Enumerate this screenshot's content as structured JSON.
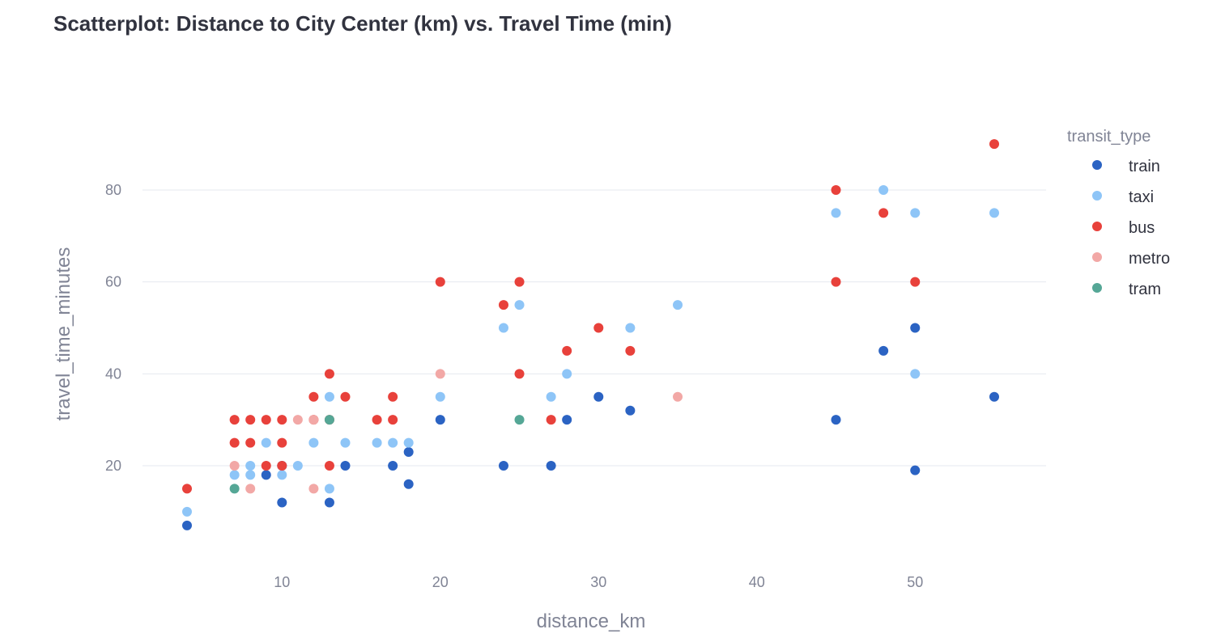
{
  "chart_data": {
    "type": "scatter",
    "title": "Scatterplot: Distance to City Center (km) vs. Travel Time (min)",
    "xlabel": "distance_km",
    "ylabel": "travel_time_minutes",
    "xlim": [
      1,
      58
    ],
    "ylim": [
      -3,
      97
    ],
    "xticks": [
      10,
      20,
      30,
      40,
      50
    ],
    "yticks": [
      20,
      40,
      60,
      80
    ],
    "grid": "horizontal",
    "legend": {
      "title": "transit_type",
      "position": "right"
    },
    "series": [
      {
        "name": "train",
        "color": "#2b63c3",
        "points": [
          [
            4,
            7
          ],
          [
            9,
            18
          ],
          [
            10,
            12
          ],
          [
            10,
            20
          ],
          [
            13,
            12
          ],
          [
            14,
            20
          ],
          [
            17,
            20
          ],
          [
            18,
            16
          ],
          [
            18,
            23
          ],
          [
            20,
            30
          ],
          [
            24,
            20
          ],
          [
            27,
            20
          ],
          [
            28,
            30
          ],
          [
            30,
            35
          ],
          [
            32,
            32
          ],
          [
            45,
            30
          ],
          [
            48,
            45
          ],
          [
            50,
            50
          ],
          [
            50,
            19
          ],
          [
            55,
            35
          ]
        ]
      },
      {
        "name": "taxi",
        "color": "#8ec5f7",
        "points": [
          [
            4,
            10
          ],
          [
            7,
            18
          ],
          [
            8,
            18
          ],
          [
            8,
            20
          ],
          [
            9,
            25
          ],
          [
            10,
            18
          ],
          [
            11,
            20
          ],
          [
            12,
            25
          ],
          [
            13,
            35
          ],
          [
            13,
            15
          ],
          [
            14,
            25
          ],
          [
            16,
            25
          ],
          [
            17,
            25
          ],
          [
            18,
            25
          ],
          [
            20,
            35
          ],
          [
            24,
            50
          ],
          [
            25,
            55
          ],
          [
            27,
            35
          ],
          [
            28,
            40
          ],
          [
            32,
            50
          ],
          [
            35,
            55
          ],
          [
            45,
            75
          ],
          [
            48,
            80
          ],
          [
            50,
            75
          ],
          [
            50,
            40
          ],
          [
            55,
            75
          ]
        ]
      },
      {
        "name": "bus",
        "color": "#e8413b",
        "points": [
          [
            4,
            15
          ],
          [
            7,
            30
          ],
          [
            7,
            25
          ],
          [
            8,
            30
          ],
          [
            8,
            25
          ],
          [
            9,
            30
          ],
          [
            9,
            20
          ],
          [
            10,
            30
          ],
          [
            10,
            25
          ],
          [
            10,
            20
          ],
          [
            12,
            35
          ],
          [
            12,
            30
          ],
          [
            13,
            40
          ],
          [
            13,
            30
          ],
          [
            13,
            20
          ],
          [
            14,
            35
          ],
          [
            16,
            30
          ],
          [
            17,
            35
          ],
          [
            17,
            30
          ],
          [
            20,
            60
          ],
          [
            24,
            55
          ],
          [
            25,
            60
          ],
          [
            25,
            40
          ],
          [
            27,
            30
          ],
          [
            28,
            45
          ],
          [
            30,
            50
          ],
          [
            32,
            45
          ],
          [
            45,
            80
          ],
          [
            45,
            60
          ],
          [
            48,
            75
          ],
          [
            50,
            60
          ],
          [
            55,
            90
          ]
        ]
      },
      {
        "name": "metro",
        "color": "#f2a8a6",
        "points": [
          [
            7,
            20
          ],
          [
            8,
            15
          ],
          [
            11,
            30
          ],
          [
            12,
            30
          ],
          [
            12,
            15
          ],
          [
            20,
            40
          ],
          [
            35,
            35
          ]
        ]
      },
      {
        "name": "tram",
        "color": "#55a796",
        "points": [
          [
            7,
            15
          ],
          [
            13,
            30
          ],
          [
            25,
            30
          ]
        ]
      }
    ]
  }
}
